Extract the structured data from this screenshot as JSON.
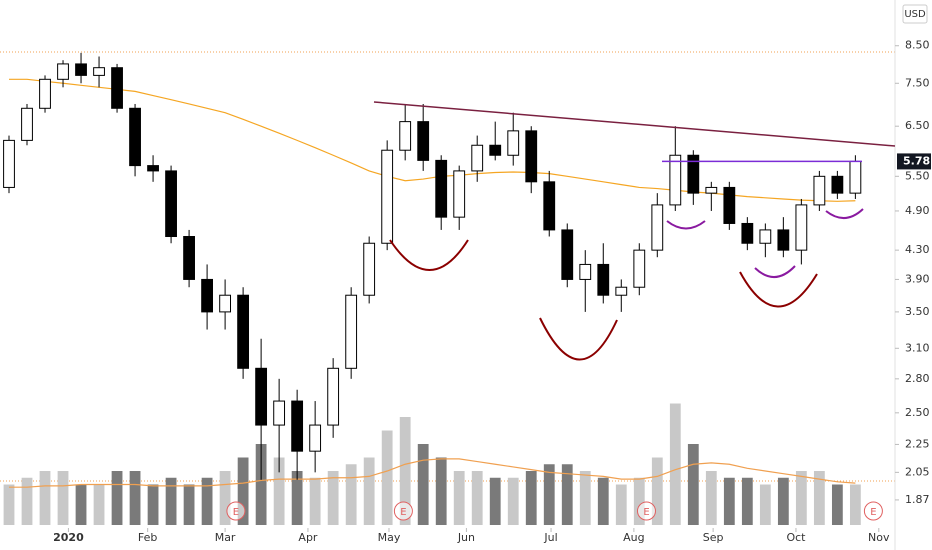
{
  "chart_data": {
    "type": "candlestick",
    "currency": "USD",
    "last_price": 5.78,
    "log_scale": true,
    "grid": false,
    "x": [
      0,
      1,
      2,
      3,
      4,
      5,
      6,
      7,
      8,
      9,
      10,
      11,
      12,
      13,
      14,
      15,
      16,
      17,
      18,
      19,
      20,
      21,
      22,
      23,
      24,
      25,
      26,
      27,
      28,
      29,
      30,
      31,
      32,
      33,
      34,
      35,
      36,
      37,
      38,
      39,
      40,
      41,
      42,
      43,
      44,
      45,
      46,
      47
    ],
    "open": [
      5.3,
      6.2,
      6.9,
      7.6,
      8.0,
      7.7,
      7.9,
      6.9,
      5.7,
      5.6,
      4.5,
      3.9,
      3.5,
      3.7,
      2.9,
      2.4,
      2.6,
      2.2,
      2.4,
      2.9,
      3.7,
      4.4,
      6.0,
      6.6,
      5.8,
      4.8,
      5.6,
      6.1,
      5.9,
      6.4,
      5.4,
      4.6,
      3.9,
      4.1,
      3.7,
      3.8,
      4.3,
      5.0,
      5.9,
      5.2,
      5.3,
      4.7,
      4.4,
      4.6,
      4.3,
      5.0,
      5.5,
      5.2
    ],
    "high": [
      6.3,
      7.0,
      7.7,
      8.1,
      8.3,
      8.2,
      8.0,
      7.0,
      5.9,
      5.7,
      4.6,
      4.1,
      3.9,
      3.8,
      3.2,
      2.8,
      2.7,
      2.6,
      3.0,
      3.8,
      4.5,
      6.2,
      7.0,
      7.0,
      5.9,
      5.7,
      6.3,
      6.6,
      6.8,
      6.5,
      5.6,
      4.7,
      4.3,
      4.4,
      3.9,
      4.4,
      5.2,
      6.5,
      6.0,
      5.4,
      5.4,
      4.8,
      4.7,
      4.8,
      5.1,
      5.6,
      5.6,
      5.9
    ],
    "low": [
      5.2,
      6.1,
      6.8,
      7.4,
      7.5,
      7.4,
      6.8,
      5.5,
      5.4,
      4.4,
      3.8,
      3.3,
      3.3,
      2.8,
      2.0,
      2.05,
      2.0,
      2.05,
      2.3,
      2.8,
      3.6,
      4.3,
      5.8,
      5.6,
      4.6,
      4.6,
      5.4,
      5.8,
      5.7,
      5.2,
      4.5,
      3.8,
      3.5,
      3.6,
      3.5,
      3.7,
      4.2,
      4.9,
      5.0,
      4.9,
      4.6,
      4.3,
      4.2,
      4.2,
      4.1,
      4.9,
      5.1,
      5.1
    ],
    "close": [
      6.2,
      6.9,
      7.6,
      8.0,
      7.7,
      7.9,
      6.9,
      5.7,
      5.6,
      4.5,
      3.9,
      3.5,
      3.7,
      2.9,
      2.4,
      2.6,
      2.2,
      2.4,
      2.9,
      3.7,
      4.4,
      6.0,
      6.6,
      5.8,
      4.8,
      5.6,
      6.1,
      5.9,
      6.4,
      5.4,
      4.6,
      3.9,
      4.1,
      3.7,
      3.8,
      4.3,
      5.0,
      5.9,
      5.2,
      5.3,
      4.7,
      4.4,
      4.6,
      4.3,
      5.0,
      5.5,
      5.2,
      5.78
    ],
    "moving_average": [
      7.6,
      7.6,
      7.55,
      7.5,
      7.45,
      7.4,
      7.35,
      7.3,
      7.2,
      7.1,
      7.0,
      6.9,
      6.8,
      6.65,
      6.5,
      6.35,
      6.2,
      6.05,
      5.9,
      5.75,
      5.6,
      5.5,
      5.42,
      5.45,
      5.5,
      5.52,
      5.55,
      5.57,
      5.58,
      5.57,
      5.55,
      5.5,
      5.45,
      5.4,
      5.35,
      5.3,
      5.28,
      5.25,
      5.22,
      5.2,
      5.17,
      5.14,
      5.12,
      5.1,
      5.08,
      5.07,
      5.06,
      5.07
    ],
    "volume": [
      3,
      3.5,
      4,
      4,
      3,
      3,
      4,
      4,
      3,
      3.5,
      3,
      3.5,
      4,
      5,
      6,
      5,
      4,
      3.5,
      4,
      4.5,
      5,
      7,
      8,
      6,
      5,
      4,
      4,
      3.5,
      3.5,
      4,
      4.5,
      4.5,
      4,
      3.5,
      3,
      3.5,
      5,
      9,
      6,
      4,
      3.5,
      3.5,
      3,
      3.5,
      4,
      4,
      3,
      3
    ],
    "volume_average": [
      2.8,
      2.8,
      2.9,
      2.9,
      3.0,
      3.0,
      3.0,
      3.0,
      2.9,
      2.9,
      2.9,
      2.9,
      3.0,
      3.1,
      3.3,
      3.4,
      3.4,
      3.4,
      3.5,
      3.5,
      3.6,
      4.0,
      4.5,
      4.8,
      4.9,
      4.9,
      4.7,
      4.5,
      4.3,
      4.1,
      3.9,
      3.8,
      3.7,
      3.6,
      3.4,
      3.4,
      3.6,
      4.1,
      4.5,
      4.6,
      4.5,
      4.2,
      4.0,
      3.8,
      3.6,
      3.4,
      3.2,
      3.1
    ],
    "vlim": [
      0,
      10
    ],
    "xlim": [
      -0.5,
      49.2
    ],
    "ylim": [
      1.72,
      9.9
    ],
    "yticks": [
      {
        "value": 8.5,
        "label": "8.50"
      },
      {
        "value": 7.5,
        "label": "7.50"
      },
      {
        "value": 6.5,
        "label": "6.50"
      },
      {
        "value": 5.5,
        "label": "5.50"
      },
      {
        "value": 4.9,
        "label": "4.90"
      },
      {
        "value": 4.3,
        "label": "4.30"
      },
      {
        "value": 3.9,
        "label": "3.90"
      },
      {
        "value": 3.5,
        "label": "3.50"
      },
      {
        "value": 3.1,
        "label": "3.10"
      },
      {
        "value": 2.8,
        "label": "2.80"
      },
      {
        "value": 2.5,
        "label": "2.50"
      },
      {
        "value": 2.25,
        "label": "2.25"
      },
      {
        "value": 2.05,
        "label": "2.05"
      },
      {
        "value": 1.87,
        "label": "1.87"
      }
    ],
    "xticks": [
      {
        "value": 3.3,
        "label": "2020"
      },
      {
        "value": 7.7,
        "label": "Feb"
      },
      {
        "value": 12.0,
        "label": "Mar"
      },
      {
        "value": 16.6,
        "label": "Apr"
      },
      {
        "value": 21.1,
        "label": "May"
      },
      {
        "value": 25.4,
        "label": "Jun"
      },
      {
        "value": 30.1,
        "label": "Jul"
      },
      {
        "value": 34.7,
        "label": "Aug"
      },
      {
        "value": 39.1,
        "label": "Sep"
      },
      {
        "value": 43.7,
        "label": "Oct"
      },
      {
        "value": 48.3,
        "label": "Nov"
      }
    ],
    "events": [
      {
        "x": 12.6,
        "label": "E"
      },
      {
        "x": 21.9,
        "label": "E"
      },
      {
        "x": 35.4,
        "label": "E"
      },
      {
        "x": 48.0,
        "label": "E"
      }
    ]
  }
}
